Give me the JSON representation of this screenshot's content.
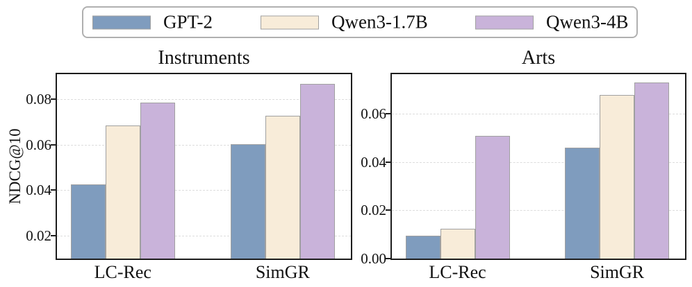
{
  "legend": {
    "entries": [
      {
        "label": "GPT-2",
        "color": "#7f9cbe"
      },
      {
        "label": "Qwen3-1.7B",
        "color": "#f8ecd9"
      },
      {
        "label": "Qwen3-4B",
        "color": "#c9b3da"
      }
    ]
  },
  "chart_data": [
    {
      "type": "bar",
      "title": "Instruments",
      "ylabel": "NDCG@10",
      "categories": [
        "LC-Rec",
        "SimGR"
      ],
      "series": [
        {
          "name": "GPT-2",
          "values": [
            0.0425,
            0.0602
          ]
        },
        {
          "name": "Qwen3-1.7B",
          "values": [
            0.0685,
            0.0727
          ]
        },
        {
          "name": "Qwen3-4B",
          "values": [
            0.0785,
            0.0868
          ]
        }
      ],
      "ylim": [
        0.01,
        0.091
      ],
      "yticks": [
        {
          "value": 0.02,
          "label": "0.02"
        },
        {
          "value": 0.04,
          "label": "0.04"
        },
        {
          "value": 0.06,
          "label": "0.06"
        },
        {
          "value": 0.08,
          "label": "0.08"
        }
      ],
      "grid": true,
      "legend_position": "top-outside"
    },
    {
      "type": "bar",
      "title": "Arts",
      "ylabel": "",
      "categories": [
        "LC-Rec",
        "SimGR"
      ],
      "series": [
        {
          "name": "GPT-2",
          "values": [
            0.0095,
            0.046
          ]
        },
        {
          "name": "Qwen3-1.7B",
          "values": [
            0.0123,
            0.068
          ]
        },
        {
          "name": "Qwen3-4B",
          "values": [
            0.0508,
            0.073
          ]
        }
      ],
      "ylim": [
        0,
        0.0765
      ],
      "yticks": [
        {
          "value": 0.0,
          "label": "0.00"
        },
        {
          "value": 0.02,
          "label": "0.02"
        },
        {
          "value": 0.04,
          "label": "0.04"
        },
        {
          "value": 0.06,
          "label": "0.06"
        }
      ],
      "grid": true
    }
  ],
  "style": {
    "bar_colors": [
      "#7f9cbe",
      "#f8ecd9",
      "#c9b3da"
    ],
    "bar_edge_color": "#a0a0a0",
    "grid_color": "#dcdcdc",
    "spine_color": "#1c1c1c",
    "legend_border_color": "#b0b0b0",
    "text_color": "#111111",
    "background": "#ffffff"
  }
}
